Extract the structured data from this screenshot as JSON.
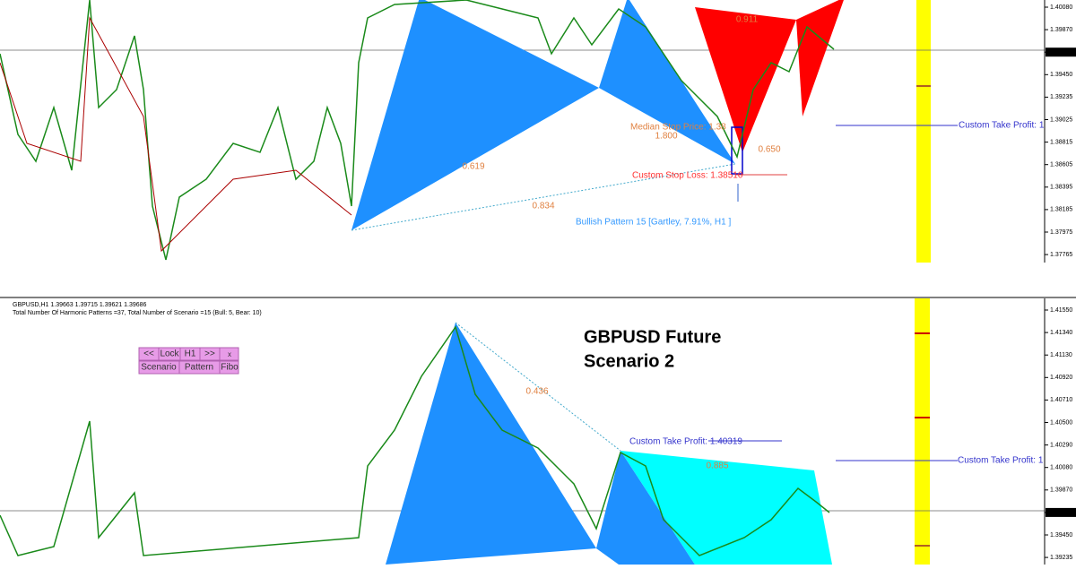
{
  "top_panel": {
    "price_axis": [
      "1.40080",
      "1.39870",
      "1.39686",
      "1.39450",
      "1.39235",
      "1.39025",
      "1.38815",
      "1.38605",
      "1.38395",
      "1.38185",
      "1.37975",
      "1.37765"
    ],
    "annotations": {
      "ratio_xd": "0.911",
      "median_stop": "Median Stop Price: 1.38",
      "ratio_bd": "1.800",
      "ratio_cd": "0.650",
      "stop_loss": "Custom Stop Loss: 1.38510",
      "ratio_ab": "0.619",
      "ratio_ad": "0.834",
      "pattern_label": "Bullish Pattern 15  [Gartley,  7.91%, H1 ]",
      "take_profit": "Custom Take Profit: 1"
    }
  },
  "bottom_panel": {
    "header": "GBPUSD,H1  1.39663 1.39715 1.39621 1.39686",
    "summary": "Total Number Of Harmonic Patterns =37, Total Number of Scenario =15 (Bull: 5, Bear: 10)",
    "buttons": {
      "prev": "<<",
      "lock": "Lock",
      "timeframe": "H1",
      "next": ">>",
      "close": "x",
      "scenario": "Scenario",
      "pattern": "Pattern",
      "fibo": "Fibo"
    },
    "title_line1": "GBPUSD Future",
    "title_line2": "Scenario 2",
    "price_axis": [
      "1.41550",
      "1.41340",
      "1.41130",
      "1.40920",
      "1.40710",
      "1.40500",
      "1.40290",
      "1.40080",
      "1.39870",
      "1.39686",
      "1.39450",
      "1.39235"
    ],
    "annotations": {
      "ratio_1": "0.436",
      "take_profit_1": "Custom Take Profit: 1.40319",
      "ratio_2": "0.885",
      "take_profit_2": "Custom Take Profit: 1"
    }
  }
}
